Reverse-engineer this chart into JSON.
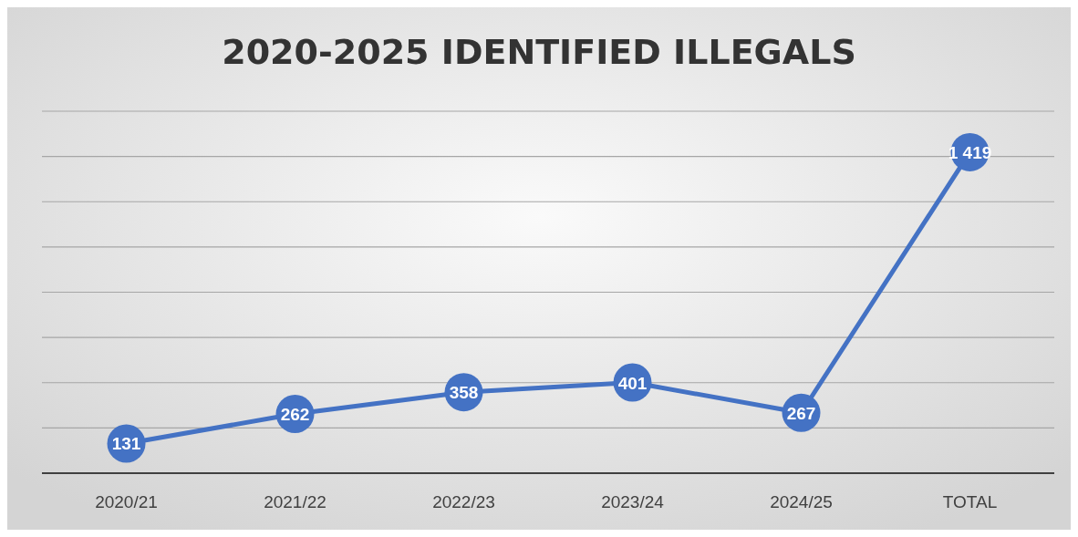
{
  "chart_data": {
    "type": "line",
    "title": "2020-2025 IDENTIFIED ILLEGALS",
    "categories": [
      "2020/21",
      "2021/22",
      "2022/23",
      "2023/24",
      "2024/25",
      "TOTAL"
    ],
    "series": [
      {
        "color": "#4472c4",
        "values": [
          131,
          262,
          358,
          401,
          267,
          1419
        ]
      }
    ],
    "ylim": [
      0,
      1600
    ],
    "yticks": [
      {
        "value": 0,
        "label": null
      },
      {
        "value": 200,
        "label": null
      },
      {
        "value": 400,
        "label": null
      },
      {
        "value": 600,
        "label": null
      },
      {
        "value": 800,
        "label": null
      },
      {
        "value": 1000,
        "label": null
      },
      {
        "value": 1200,
        "label": null
      },
      {
        "value": 1400,
        "label": null
      },
      {
        "value": 1600,
        "label": null
      }
    ],
    "tick_labels": "x",
    "grid": "y",
    "marker": "circle",
    "line_style": "solid",
    "data_labels": true
  }
}
